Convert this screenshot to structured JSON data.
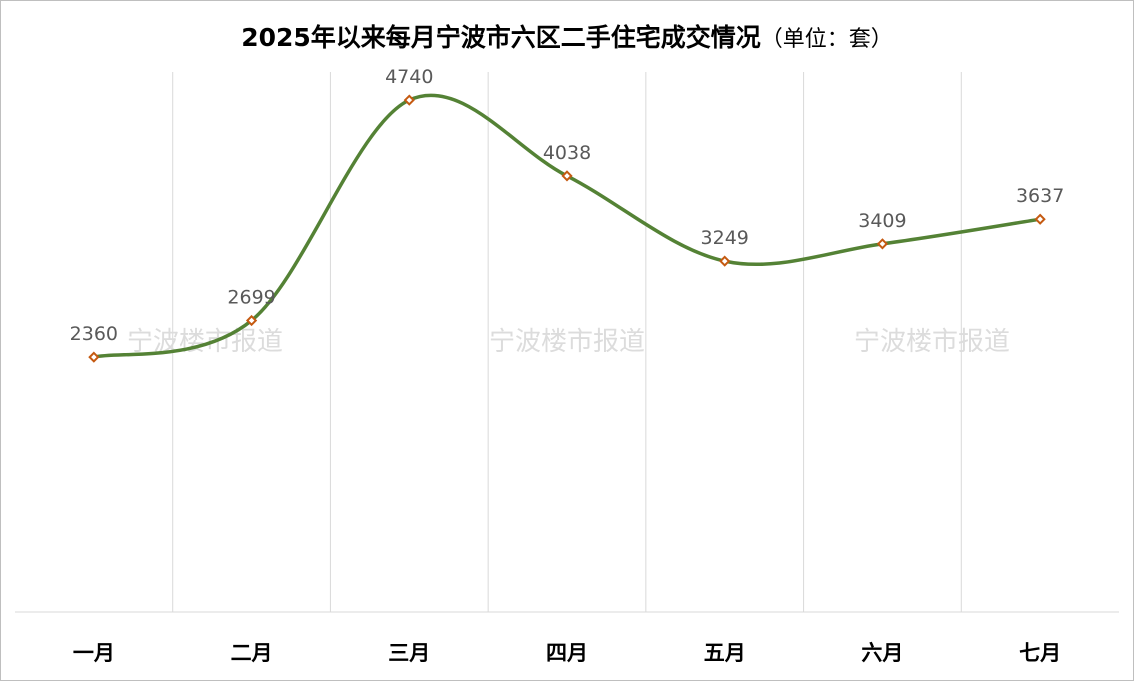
{
  "title": "2025年以来每月宁波市六区二手住宅成交情况",
  "title_unit": "（单位：套）",
  "watermark": "宁波楼市报道",
  "colors": {
    "line": "#548235",
    "marker_edge": "#c55a11",
    "marker_fill": "#ffffff",
    "grid": "#d9d9d9"
  },
  "chart_data": {
    "type": "line",
    "smooth": true,
    "categories": [
      "一月",
      "二月",
      "三月",
      "四月",
      "五月",
      "六月",
      "七月"
    ],
    "values": [
      2360,
      2699,
      4740,
      4038,
      3249,
      3409,
      3637
    ],
    "ylim": [
      0,
      5000
    ],
    "grid": "vertical",
    "legend": "none"
  }
}
